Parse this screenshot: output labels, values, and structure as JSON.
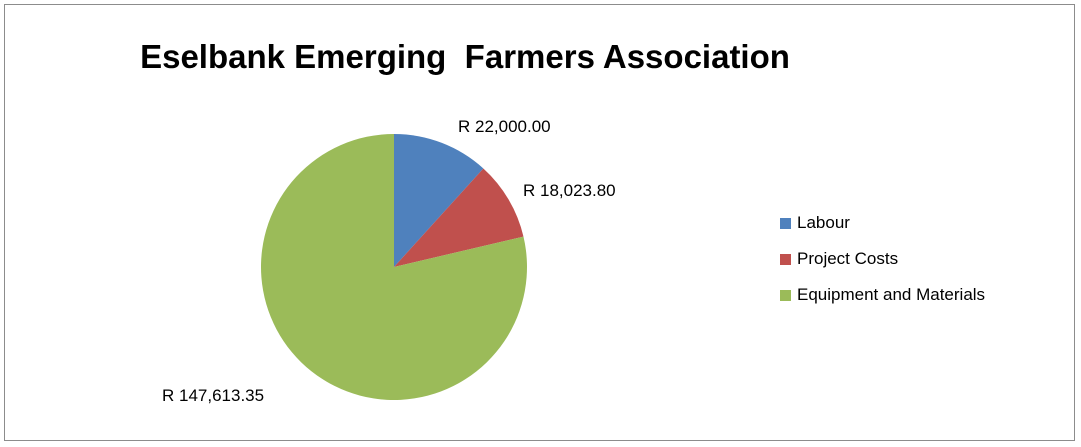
{
  "chart_data": {
    "type": "pie",
    "title": "Eselbank Emerging  Farmers Association",
    "slices": [
      {
        "name": "Labour",
        "value": 22000.0,
        "label": "R 22,000.00",
        "color": "#4f81bd"
      },
      {
        "name": "Project Costs",
        "value": 18023.8,
        "label": "R 18,023.80",
        "color": "#c0504d"
      },
      {
        "name": "Equipment and Materials",
        "value": 147613.35,
        "label": "R 147,613.35",
        "color": "#9bbb59"
      }
    ],
    "legend_position": "right"
  }
}
